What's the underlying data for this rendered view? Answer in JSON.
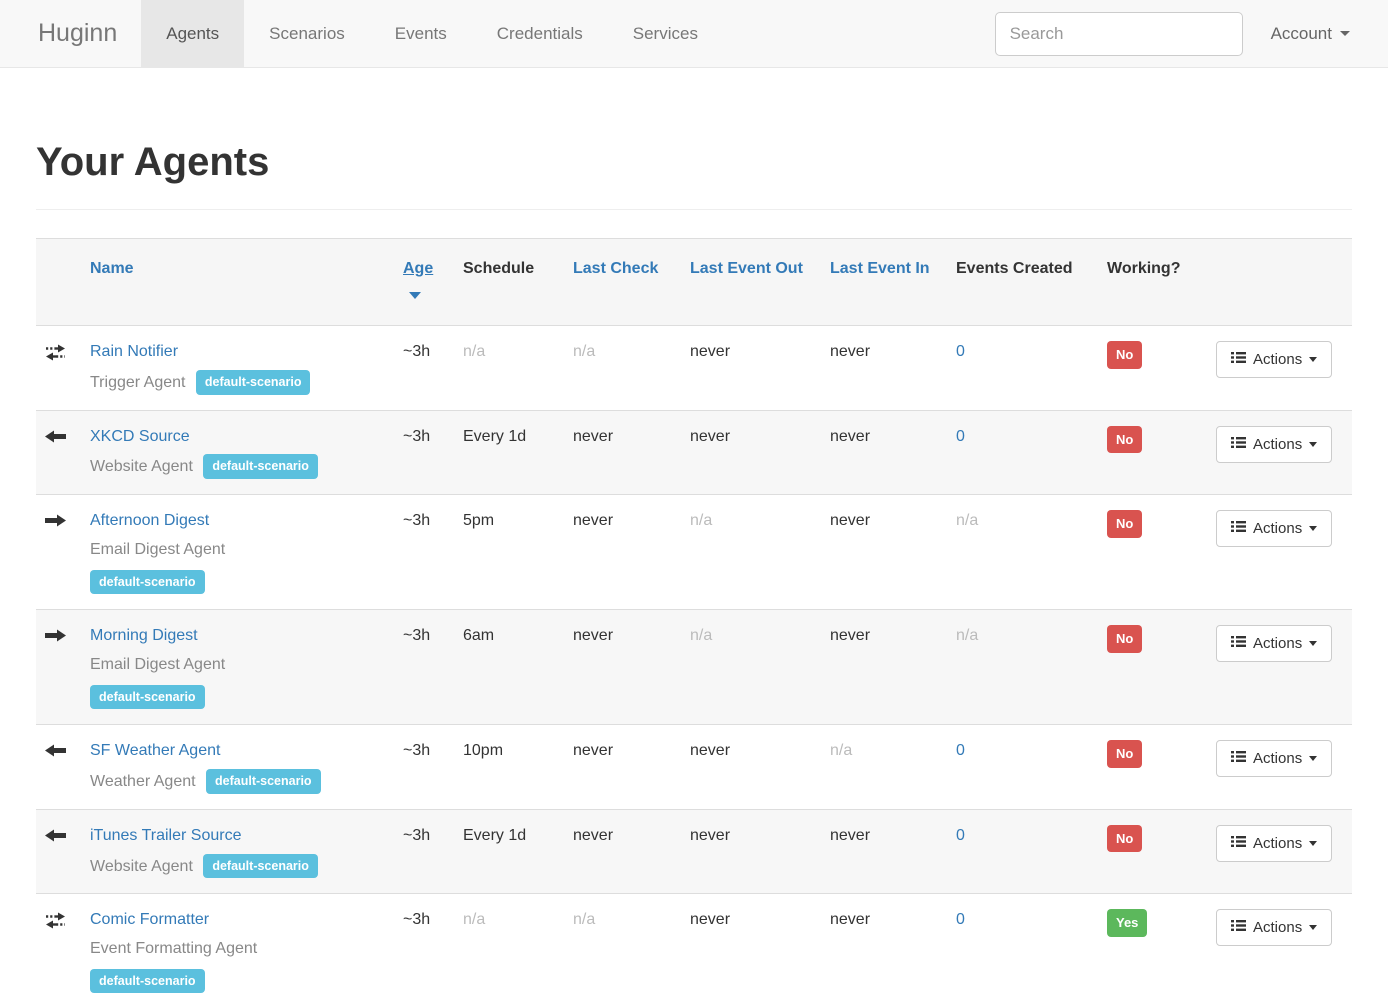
{
  "nav": {
    "brand": "Huginn",
    "items": [
      {
        "label": "Agents",
        "active": true
      },
      {
        "label": "Scenarios",
        "active": false
      },
      {
        "label": "Events",
        "active": false
      },
      {
        "label": "Credentials",
        "active": false
      },
      {
        "label": "Services",
        "active": false
      }
    ],
    "search_placeholder": "Search",
    "account_label": "Account"
  },
  "page": {
    "title": "Your Agents"
  },
  "table": {
    "headers": [
      {
        "label": "Name",
        "link": true
      },
      {
        "label": "Age",
        "link": true,
        "sorted": true
      },
      {
        "label": "Schedule",
        "link": false
      },
      {
        "label": "Last Check",
        "link": true
      },
      {
        "label": "Last Event Out",
        "link": true
      },
      {
        "label": "Last Event In",
        "link": true
      },
      {
        "label": "Events Created",
        "link": false
      },
      {
        "label": "Working?",
        "link": false
      }
    ],
    "actions_label": "Actions",
    "rows": [
      {
        "icon": "transfer-icon",
        "name": "Rain Notifier",
        "type": "Trigger Agent",
        "scenario": "default-scenario",
        "badge_inline": true,
        "age": "~3h",
        "schedule": {
          "text": "n/a",
          "muted": true
        },
        "last_check": {
          "text": "n/a",
          "muted": true
        },
        "last_event_out": {
          "text": "never",
          "muted": false
        },
        "last_event_in": {
          "text": "never",
          "muted": false
        },
        "events_created": {
          "text": "0",
          "link": true
        },
        "working": {
          "text": "No",
          "status": "danger"
        }
      },
      {
        "icon": "arrow-left-icon",
        "name": "XKCD Source",
        "type": "Website Agent",
        "scenario": "default-scenario",
        "badge_inline": true,
        "age": "~3h",
        "schedule": {
          "text": "Every 1d",
          "muted": false
        },
        "last_check": {
          "text": "never",
          "muted": false
        },
        "last_event_out": {
          "text": "never",
          "muted": false
        },
        "last_event_in": {
          "text": "never",
          "muted": false
        },
        "events_created": {
          "text": "0",
          "link": true
        },
        "working": {
          "text": "No",
          "status": "danger"
        }
      },
      {
        "icon": "arrow-right-icon",
        "name": "Afternoon Digest",
        "type": "Email Digest Agent",
        "scenario": "default-scenario",
        "badge_inline": false,
        "age": "~3h",
        "schedule": {
          "text": "5pm",
          "muted": false
        },
        "last_check": {
          "text": "never",
          "muted": false
        },
        "last_event_out": {
          "text": "n/a",
          "muted": true
        },
        "last_event_in": {
          "text": "never",
          "muted": false
        },
        "events_created": {
          "text": "n/a",
          "muted": true
        },
        "working": {
          "text": "No",
          "status": "danger"
        }
      },
      {
        "icon": "arrow-right-icon",
        "name": "Morning Digest",
        "type": "Email Digest Agent",
        "scenario": "default-scenario",
        "badge_inline": false,
        "age": "~3h",
        "schedule": {
          "text": "6am",
          "muted": false
        },
        "last_check": {
          "text": "never",
          "muted": false
        },
        "last_event_out": {
          "text": "n/a",
          "muted": true
        },
        "last_event_in": {
          "text": "never",
          "muted": false
        },
        "events_created": {
          "text": "n/a",
          "muted": true
        },
        "working": {
          "text": "No",
          "status": "danger"
        }
      },
      {
        "icon": "arrow-left-icon",
        "name": "SF Weather Agent",
        "type": "Weather Agent",
        "scenario": "default-scenario",
        "badge_inline": true,
        "age": "~3h",
        "schedule": {
          "text": "10pm",
          "muted": false
        },
        "last_check": {
          "text": "never",
          "muted": false
        },
        "last_event_out": {
          "text": "never",
          "muted": false
        },
        "last_event_in": {
          "text": "n/a",
          "muted": true
        },
        "events_created": {
          "text": "0",
          "link": true
        },
        "working": {
          "text": "No",
          "status": "danger"
        }
      },
      {
        "icon": "arrow-left-icon",
        "name": "iTunes Trailer Source",
        "type": "Website Agent",
        "scenario": "default-scenario",
        "badge_inline": true,
        "age": "~3h",
        "schedule": {
          "text": "Every 1d",
          "muted": false
        },
        "last_check": {
          "text": "never",
          "muted": false
        },
        "last_event_out": {
          "text": "never",
          "muted": false
        },
        "last_event_in": {
          "text": "never",
          "muted": false
        },
        "events_created": {
          "text": "0",
          "link": true
        },
        "working": {
          "text": "No",
          "status": "danger"
        }
      },
      {
        "icon": "transfer-icon",
        "name": "Comic Formatter",
        "type": "Event Formatting Agent",
        "scenario": "default-scenario",
        "badge_inline": false,
        "age": "~3h",
        "schedule": {
          "text": "n/a",
          "muted": true
        },
        "last_check": {
          "text": "n/a",
          "muted": true
        },
        "last_event_out": {
          "text": "never",
          "muted": false
        },
        "last_event_in": {
          "text": "never",
          "muted": false
        },
        "events_created": {
          "text": "0",
          "link": true
        },
        "working": {
          "text": "Yes",
          "status": "success"
        }
      }
    ]
  },
  "colors": {
    "link_blue": "#337ab7",
    "badge_info": "#5bc0de",
    "status_danger": "#d9534f",
    "status_success": "#5cb85c",
    "navbar_bg": "#f8f8f8",
    "nav_active_bg": "#e7e7e7"
  }
}
